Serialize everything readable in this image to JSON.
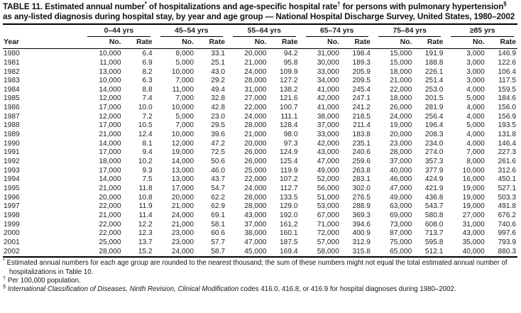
{
  "table": {
    "title_segments": [
      {
        "text": "TABLE 11. Estimated annual number",
        "sup": false
      },
      {
        "text": "*",
        "sup": true
      },
      {
        "text": " of hospitalizations and age-specific hospital rate",
        "sup": false
      },
      {
        "text": "†",
        "sup": true
      },
      {
        "text": " for persons with pulmonary hypertension",
        "sup": false
      },
      {
        "text": "§",
        "sup": true
      },
      {
        "text": " as any-listed diagnosis during hospital stay, by year and age group — National Hospital Discharge Survey, United States, 1980–2002",
        "sup": false
      }
    ],
    "year_header": "Year",
    "age_groups": [
      "0–44 yrs",
      "45–54 yrs",
      "55–64 yrs",
      "65–74 yrs",
      "75–84 yrs",
      "≥85 yrs"
    ],
    "subheaders": {
      "number": "No.",
      "rate": "Rate"
    },
    "rows": [
      {
        "year": "1980",
        "values": [
          "10,000",
          "6.4",
          "8,000",
          "33.1",
          "20,000",
          "94.2",
          "31,000",
          "198.4",
          "15,000",
          "191.9",
          "3,000",
          "146.9"
        ]
      },
      {
        "year": "1981",
        "values": [
          "11,000",
          "6.9",
          "5,000",
          "25.1",
          "21,000",
          "95.8",
          "30,000",
          "189.3",
          "15,000",
          "188.8",
          "3,000",
          "122.6"
        ]
      },
      {
        "year": "1982",
        "values": [
          "13,000",
          "8.2",
          "10,000",
          "43.0",
          "24,000",
          "109.9",
          "33,000",
          "205.9",
          "18,000",
          "226.1",
          "3,000",
          "106.4"
        ]
      },
      {
        "year": "1983",
        "values": [
          "10,000",
          "6.3",
          "7,000",
          "29.2",
          "28,000",
          "127.2",
          "34,000",
          "209.5",
          "21,000",
          "251.4",
          "3,000",
          "117.5"
        ]
      },
      {
        "year": "1984",
        "values": [
          "14,000",
          "8.8",
          "11,000",
          "49.4",
          "31,000",
          "138.2",
          "41,000",
          "245.4",
          "22,000",
          "253.0",
          "4,000",
          "159.5"
        ]
      },
      {
        "year": "1985",
        "values": [
          "12,000",
          "7.4",
          "7,000",
          "32.8",
          "27,000",
          "121.6",
          "42,000",
          "247.1",
          "18,000",
          "201.5",
          "5,000",
          "184.6"
        ]
      },
      {
        "year": "1986",
        "values": [
          "17,000",
          "10.0",
          "10,000",
          "42.8",
          "22,000",
          "100.7",
          "41,000",
          "241.2",
          "26,000",
          "281.9",
          "4,000",
          "156.0"
        ]
      },
      {
        "year": "1987",
        "values": [
          "12,000",
          "7.2",
          "5,000",
          "23.0",
          "24,000",
          "111.1",
          "38,000",
          "218.5",
          "24,000",
          "256.4",
          "4,000",
          "156.9"
        ]
      },
      {
        "year": "1988",
        "values": [
          "17,000",
          "10.5",
          "7,000",
          "29.5",
          "28,000",
          "128.4",
          "37,000",
          "211.4",
          "19,000",
          "196.4",
          "5,000",
          "193.5"
        ]
      },
      {
        "year": "1989",
        "values": [
          "21,000",
          "12.4",
          "10,000",
          "39.6",
          "21,000",
          "98.0",
          "33,000",
          "183.8",
          "20,000",
          "208.3",
          "4,000",
          "131.8"
        ]
      },
      {
        "year": "1990",
        "values": [
          "14,000",
          "8.1",
          "12,000",
          "47.2",
          "20,000",
          "97.3",
          "42,000",
          "235.1",
          "23,000",
          "234.0",
          "4,000",
          "146.4"
        ]
      },
      {
        "year": "1991",
        "values": [
          "17,000",
          "9.4",
          "19,000",
          "72.5",
          "26,000",
          "124.9",
          "43,000",
          "240.6",
          "28,000",
          "274.0",
          "7,000",
          "227.3"
        ]
      },
      {
        "year": "1992",
        "values": [
          "18,000",
          "10.2",
          "14,000",
          "50.6",
          "26,000",
          "125.4",
          "47,000",
          "259.6",
          "37,000",
          "357.3",
          "8,000",
          "261.6"
        ]
      },
      {
        "year": "1993",
        "values": [
          "17,000",
          "9.3",
          "13,000",
          "46.0",
          "25,000",
          "119.9",
          "49,000",
          "263.8",
          "40,000",
          "377.9",
          "10,000",
          "312.6"
        ]
      },
      {
        "year": "1994",
        "values": [
          "14,000",
          "7.5",
          "13,000",
          "43.7",
          "22,000",
          "107.2",
          "52,000",
          "283.1",
          "46,000",
          "424.9",
          "16,000",
          "450.1"
        ]
      },
      {
        "year": "1995",
        "values": [
          "21,000",
          "11.8",
          "17,000",
          "54.7",
          "24,000",
          "112.7",
          "56,000",
          "302.0",
          "47,000",
          "421.9",
          "19,000",
          "527.1"
        ]
      },
      {
        "year": "1996",
        "values": [
          "20,000",
          "10.8",
          "20,000",
          "62.2",
          "28,000",
          "133.5",
          "51,000",
          "276.5",
          "49,000",
          "436.8",
          "19,000",
          "503.3"
        ]
      },
      {
        "year": "1997",
        "values": [
          "22,000",
          "11.9",
          "21,000",
          "62.9",
          "28,000",
          "129.0",
          "53,000",
          "288.9",
          "63,000",
          "543.7",
          "19,000",
          "491.8"
        ]
      },
      {
        "year": "1998",
        "values": [
          "21,000",
          "11.4",
          "24,000",
          "69.1",
          "43,000",
          "192.0",
          "67,000",
          "369.3",
          "69,000",
          "580.8",
          "27,000",
          "676.2"
        ]
      },
      {
        "year": "1999",
        "values": [
          "22,000",
          "12.2",
          "21,000",
          "58.1",
          "37,000",
          "161.2",
          "71,000",
          "394.6",
          "73,000",
          "608.0",
          "31,000",
          "740.6"
        ]
      },
      {
        "year": "2000",
        "values": [
          "22,000",
          "12.3",
          "23,000",
          "60.6",
          "38,000",
          "160.1",
          "72,000",
          "400.9",
          "87,000",
          "713.7",
          "43,000",
          "997.6"
        ]
      },
      {
        "year": "2001",
        "values": [
          "25,000",
          "13.7",
          "23,000",
          "57.7",
          "47,000",
          "187.5",
          "57,000",
          "312.9",
          "75,000",
          "595.8",
          "35,000",
          "793.9"
        ]
      },
      {
        "year": "2002",
        "values": [
          "28,000",
          "15.2",
          "24,000",
          "58.7",
          "45,000",
          "169.4",
          "58,000",
          "315.8",
          "65,000",
          "512.1",
          "40,000",
          "880.3"
        ]
      }
    ],
    "footnotes": [
      {
        "marker": "*",
        "segments": [
          {
            "text": "Estimated annual numbers for each age group are rounded to the nearest thousand; the sum of these numbers might not equal the total estimated annual number of hospitalizations in Table 10.",
            "italic": false
          }
        ]
      },
      {
        "marker": "†",
        "segments": [
          {
            "text": "Per 100,000 population.",
            "italic": false
          }
        ]
      },
      {
        "marker": "§",
        "segments": [
          {
            "text": "International Classification of Diseases, Ninth Revision, Clinical Modification",
            "italic": true
          },
          {
            "text": " codes 416.0, 416.8, or 416.9 for hospital diagnoses during 1980–2002.",
            "italic": false
          }
        ]
      }
    ]
  }
}
